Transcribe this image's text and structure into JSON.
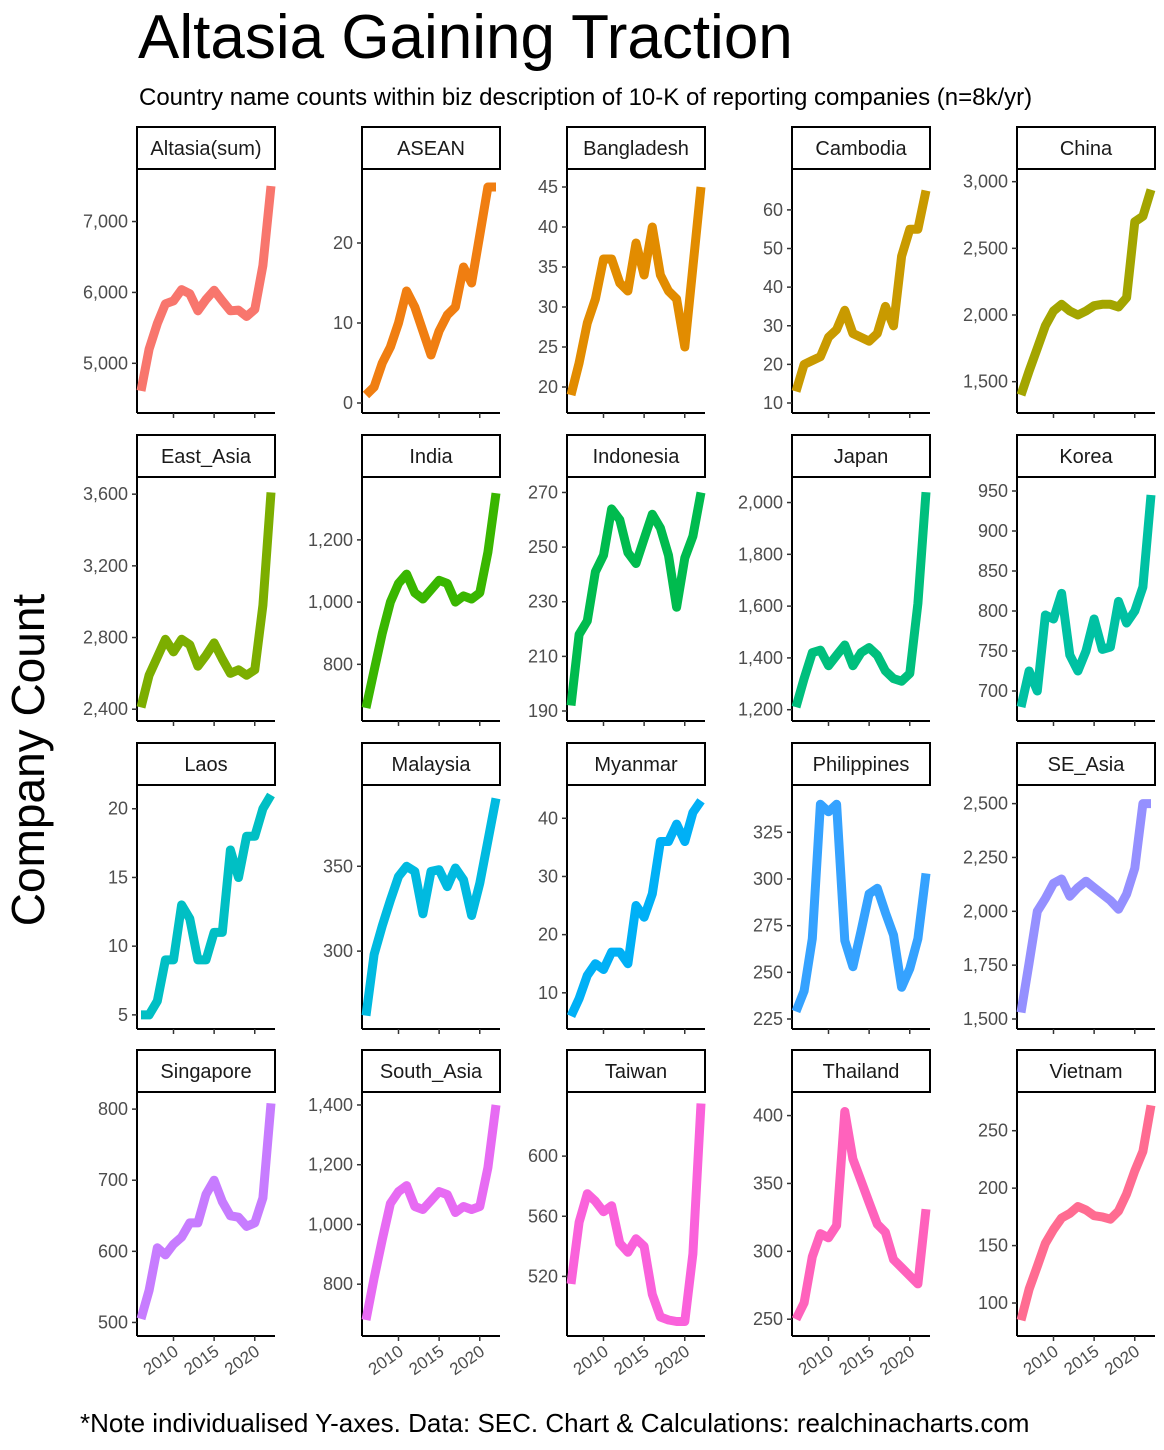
{
  "title": "Altasia Gaining Traction",
  "subtitle": "Country name counts within biz description of 10-K of reporting companies (n=8k/yr)",
  "ylabel": "Company Count",
  "caption": "*Note individualised Y-axes. Data: SEC. Chart & Calculations: realchinacharts.com",
  "chart_data": {
    "type": "line",
    "layout": "facet-grid 5 columns x 4 rows, free y-scales",
    "xlabel": "",
    "ylabel": "Company Count",
    "x_ticks": [
      "2010",
      "2015",
      "2020"
    ],
    "xlim": [
      2006,
      2022
    ],
    "x": [
      2006,
      2007,
      2008,
      2009,
      2010,
      2011,
      2012,
      2013,
      2014,
      2015,
      2016,
      2017,
      2018,
      2019,
      2020,
      2021,
      2022
    ],
    "legend": "none",
    "grid": false,
    "series": [
      {
        "name": "Altasia(sum)",
        "color": "#F8766D",
        "yticks": [
          "5,000",
          "6,000",
          "7,000"
        ],
        "tickvals": [
          5000,
          6000,
          7000
        ],
        "ylim": [
          4440,
          7600
        ],
        "values": [
          4610,
          5200,
          5560,
          5840,
          5880,
          6040,
          5980,
          5740,
          5900,
          6030,
          5880,
          5740,
          5750,
          5660,
          5760,
          6380,
          7500
        ]
      },
      {
        "name": "ASEAN",
        "color": "#F07E11",
        "yticks": [
          "0",
          "10",
          "20"
        ],
        "tickvals": [
          0,
          10,
          20
        ],
        "ylim": [
          0,
          28
        ],
        "values": [
          1,
          2,
          5,
          7,
          10,
          14,
          12,
          9,
          6,
          9,
          11,
          12,
          17,
          15,
          21,
          27,
          27
        ]
      },
      {
        "name": "Bangladesh",
        "color": "#E28C00",
        "yticks": [
          "20",
          "25",
          "30",
          "35",
          "40",
          "45"
        ],
        "tickvals": [
          20,
          25,
          30,
          35,
          40,
          45
        ],
        "ylim": [
          18,
          46
        ],
        "values": [
          19,
          23,
          28,
          31,
          36,
          36,
          33,
          32,
          38,
          34,
          40,
          34,
          32,
          31,
          25,
          35,
          45
        ]
      },
      {
        "name": "Cambodia",
        "color": "#C99A00",
        "yticks": [
          "10",
          "20",
          "30",
          "40",
          "50",
          "60"
        ],
        "tickvals": [
          10,
          20,
          30,
          40,
          50,
          60
        ],
        "ylim": [
          10,
          68
        ],
        "values": [
          13,
          20,
          21,
          22,
          27,
          29,
          34,
          28,
          27,
          26,
          28,
          35,
          30,
          48,
          55,
          55,
          65
        ]
      },
      {
        "name": "China",
        "color": "#A3A500",
        "yticks": [
          "1,500",
          "2,000",
          "2,500",
          "3,000"
        ],
        "tickvals": [
          1500,
          2000,
          2500,
          3000
        ],
        "ylim": [
          1340,
          3020
        ],
        "values": [
          1400,
          1580,
          1750,
          1920,
          2030,
          2080,
          2030,
          2000,
          2030,
          2070,
          2080,
          2080,
          2060,
          2130,
          2700,
          2740,
          2940
        ]
      },
      {
        "name": "East_Asia",
        "color": "#7CAE00",
        "yticks": [
          "2,400",
          "2,800",
          "3,200",
          "3,600"
        ],
        "tickvals": [
          2400,
          2800,
          3200,
          3600
        ],
        "ylim": [
          2390,
          3640
        ],
        "values": [
          2410,
          2590,
          2690,
          2790,
          2720,
          2790,
          2760,
          2640,
          2700,
          2770,
          2680,
          2600,
          2620,
          2590,
          2620,
          2980,
          3610
        ]
      },
      {
        "name": "India",
        "color": "#39B600",
        "yticks": [
          "800",
          "1,000",
          "1,200"
        ],
        "tickvals": [
          800,
          1000,
          1200
        ],
        "ylim": [
          650,
          1370
        ],
        "values": [
          660,
          780,
          900,
          1000,
          1060,
          1090,
          1030,
          1010,
          1040,
          1070,
          1060,
          1000,
          1020,
          1010,
          1030,
          1160,
          1350
        ]
      },
      {
        "name": "Indonesia",
        "color": "#00BB4E",
        "yticks": [
          "190",
          "210",
          "230",
          "250",
          "270"
        ],
        "tickvals": [
          190,
          210,
          230,
          250,
          270
        ],
        "ylim": [
          190,
          272
        ],
        "values": [
          192,
          218,
          223,
          241,
          247,
          264,
          260,
          248,
          244,
          253,
          262,
          257,
          247,
          228,
          246,
          254,
          270
        ]
      },
      {
        "name": "Japan",
        "color": "#00BF7D",
        "yticks": [
          "1,200",
          "1,400",
          "1,600",
          "1,800",
          "2,000"
        ],
        "tickvals": [
          1200,
          1400,
          1600,
          1800,
          2000
        ],
        "ylim": [
          1195,
          2060
        ],
        "values": [
          1210,
          1320,
          1420,
          1430,
          1370,
          1410,
          1450,
          1370,
          1420,
          1440,
          1410,
          1350,
          1320,
          1310,
          1340,
          1610,
          2040
        ]
      },
      {
        "name": "Korea",
        "color": "#00C1A3",
        "yticks": [
          "700",
          "750",
          "800",
          "850",
          "900",
          "950"
        ],
        "tickvals": [
          700,
          750,
          800,
          850,
          900,
          950
        ],
        "ylim": [
          675,
          955
        ],
        "values": [
          680,
          725,
          700,
          795,
          790,
          822,
          745,
          725,
          750,
          790,
          752,
          755,
          812,
          785,
          800,
          830,
          945
        ]
      },
      {
        "name": "Laos",
        "color": "#00BFC4",
        "yticks": [
          "5",
          "10",
          "15",
          "20"
        ],
        "tickvals": [
          5,
          10,
          15,
          20
        ],
        "ylim": [
          4.7,
          21
        ],
        "values": [
          5,
          5,
          6,
          9,
          9,
          13,
          12,
          9,
          9,
          11,
          11,
          17,
          15,
          18,
          18,
          20,
          21
        ]
      },
      {
        "name": "Malaysia",
        "color": "#00BAE0",
        "yticks": [
          "300",
          "350"
        ],
        "tickvals": [
          300,
          350
        ],
        "ylim": [
          260,
          392
        ],
        "values": [
          262,
          298,
          315,
          330,
          344,
          350,
          347,
          322,
          347,
          348,
          338,
          349,
          342,
          321,
          340,
          365,
          390
        ]
      },
      {
        "name": "Myanmar",
        "color": "#00B0F6",
        "yticks": [
          "10",
          "20",
          "30",
          "40"
        ],
        "tickvals": [
          10,
          20,
          30,
          40
        ],
        "ylim": [
          5.5,
          44
        ],
        "values": [
          6,
          9,
          13,
          15,
          14,
          17,
          17,
          15,
          25,
          23,
          27,
          36,
          36,
          39,
          36,
          41,
          43
        ]
      },
      {
        "name": "Philippines",
        "color": "#35A2FF",
        "yticks": [
          "225",
          "250",
          "275",
          "300",
          "325"
        ],
        "tickvals": [
          225,
          250,
          275,
          300,
          325
        ],
        "ylim": [
          225,
          345
        ],
        "values": [
          229,
          240,
          268,
          340,
          336,
          340,
          267,
          253,
          272,
          292,
          295,
          282,
          270,
          242,
          252,
          268,
          303
        ]
      },
      {
        "name": "SE_Asia",
        "color": "#9590FF",
        "yticks": [
          "1,500",
          "1,750",
          "2,000",
          "2,250",
          "2,500"
        ],
        "tickvals": [
          1500,
          1750,
          2000,
          2250,
          2500
        ],
        "ylim": [
          1500,
          2540
        ],
        "values": [
          1530,
          1760,
          2000,
          2060,
          2130,
          2150,
          2070,
          2110,
          2140,
          2110,
          2080,
          2050,
          2010,
          2080,
          2200,
          2500,
          2500
        ]
      },
      {
        "name": "Singapore",
        "color": "#C77CFF",
        "yticks": [
          "500",
          "600",
          "700",
          "800"
        ],
        "tickvals": [
          500,
          600,
          700,
          800
        ],
        "ylim": [
          495,
          810
        ],
        "values": [
          505,
          545,
          605,
          595,
          610,
          620,
          640,
          640,
          680,
          700,
          670,
          650,
          648,
          635,
          640,
          675,
          808
        ]
      },
      {
        "name": "South_Asia",
        "color": "#E76BF3",
        "yticks": [
          "800",
          "1,000",
          "1,200",
          "1,400"
        ],
        "tickvals": [
          800,
          1000,
          1200,
          1400
        ],
        "ylim": [
          660,
          1410
        ],
        "values": [
          680,
          820,
          950,
          1070,
          1110,
          1130,
          1060,
          1050,
          1080,
          1110,
          1100,
          1040,
          1060,
          1050,
          1060,
          1190,
          1400
        ]
      },
      {
        "name": "Taiwan",
        "color": "#FA62DB",
        "yticks": [
          "520",
          "560",
          "600"
        ],
        "tickvals": [
          520,
          560,
          600
        ],
        "ylim": [
          487,
          636
        ],
        "values": [
          515,
          556,
          575,
          570,
          563,
          567,
          542,
          536,
          545,
          540,
          508,
          493,
          491,
          490,
          490,
          535,
          635
        ]
      },
      {
        "name": "Thailand",
        "color": "#FF62BC",
        "yticks": [
          "250",
          "300",
          "350",
          "400"
        ],
        "tickvals": [
          250,
          300,
          350,
          400
        ],
        "ylim": [
          245,
          410
        ],
        "values": [
          250,
          262,
          296,
          313,
          310,
          319,
          403,
          368,
          352,
          336,
          320,
          314,
          294,
          288,
          282,
          276,
          331
        ]
      },
      {
        "name": "Vietnam",
        "color": "#FF6C91",
        "yticks": [
          "100",
          "150",
          "200",
          "250"
        ],
        "tickvals": [
          100,
          150,
          200,
          250
        ],
        "ylim": [
          80,
          275
        ],
        "values": [
          85,
          112,
          132,
          152,
          164,
          174,
          178,
          184,
          181,
          176,
          175,
          173,
          180,
          195,
          215,
          232,
          272
        ]
      }
    ]
  }
}
